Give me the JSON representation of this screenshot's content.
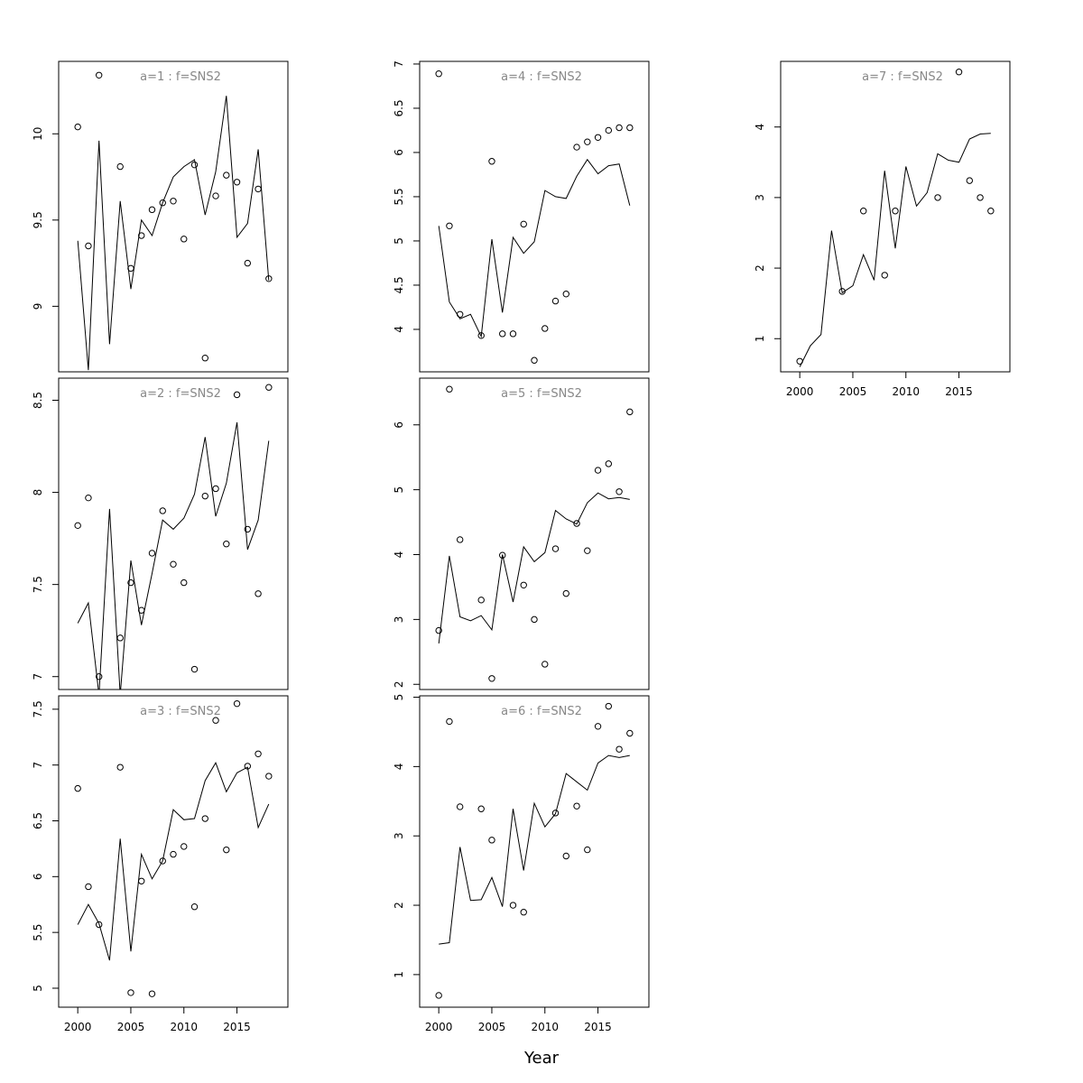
{
  "figure": {
    "xlabel": "Year"
  },
  "chart_data": [
    {
      "type": "line+scatter",
      "title": "a=1 : f=SNS2",
      "xlim": [
        1998.2,
        2019.8
      ],
      "ylim": [
        8.62,
        10.42
      ],
      "yticks": [
        9.0,
        9.5,
        10.0
      ],
      "xticks": [],
      "series": [
        {
          "name": "line",
          "x": [
            2000,
            2001,
            2002,
            2003,
            2004,
            2005,
            2006,
            2007,
            2008,
            2009,
            2010,
            2011,
            2012,
            2013,
            2014,
            2015,
            2016,
            2017,
            2018
          ],
          "values": [
            9.38,
            8.63,
            9.96,
            8.78,
            9.61,
            9.1,
            9.5,
            9.41,
            9.6,
            9.75,
            9.81,
            9.85,
            9.53,
            9.78,
            10.22,
            9.4,
            9.48,
            9.91,
            9.15
          ]
        },
        {
          "name": "points",
          "x": [
            2000,
            2001,
            2002,
            2004,
            2005,
            2006,
            2007,
            2008,
            2009,
            2010,
            2011,
            2012,
            2013,
            2014,
            2015,
            2016,
            2017,
            2018
          ],
          "values": [
            10.04,
            9.35,
            10.34,
            9.81,
            9.22,
            9.41,
            9.56,
            9.6,
            9.61,
            9.39,
            9.82,
            8.7,
            9.64,
            9.76,
            9.72,
            9.25,
            9.68,
            9.16
          ]
        }
      ]
    },
    {
      "type": "line+scatter",
      "title": "a=2 : f=SNS2",
      "xlim": [
        1998.2,
        2019.8
      ],
      "ylim": [
        6.93,
        8.62
      ],
      "yticks": [
        7.0,
        7.5,
        8.0,
        8.5
      ],
      "xticks": [],
      "series": [
        {
          "name": "line",
          "x": [
            2000,
            2001,
            2002,
            2003,
            2004,
            2005,
            2006,
            2007,
            2008,
            2009,
            2010,
            2011,
            2012,
            2013,
            2014,
            2015,
            2016,
            2017,
            2018
          ],
          "values": [
            7.29,
            7.4,
            6.9,
            7.91,
            6.9,
            7.63,
            7.28,
            7.56,
            7.85,
            7.8,
            7.86,
            7.99,
            8.3,
            7.87,
            8.05,
            8.38,
            7.69,
            7.85,
            8.28
          ]
        },
        {
          "name": "points",
          "x": [
            2000,
            2001,
            2002,
            2004,
            2005,
            2006,
            2007,
            2008,
            2009,
            2010,
            2011,
            2012,
            2013,
            2014,
            2015,
            2016,
            2017,
            2018
          ],
          "values": [
            7.82,
            7.97,
            7.0,
            7.21,
            7.51,
            7.36,
            7.67,
            7.9,
            7.61,
            7.51,
            7.04,
            7.98,
            8.02,
            7.72,
            8.53,
            7.8,
            7.45,
            8.57
          ]
        }
      ]
    },
    {
      "type": "line+scatter",
      "title": "a=3 : f=SNS2",
      "xlim": [
        1998.2,
        2019.8
      ],
      "ylim": [
        4.83,
        7.62
      ],
      "yticks": [
        5.0,
        5.5,
        6.0,
        6.5,
        7.0,
        7.5
      ],
      "xticks": [
        2000,
        2005,
        2010,
        2015
      ],
      "series": [
        {
          "name": "line",
          "x": [
            2000,
            2001,
            2002,
            2003,
            2004,
            2005,
            2006,
            2007,
            2008,
            2009,
            2010,
            2011,
            2012,
            2013,
            2014,
            2015,
            2016,
            2017,
            2018
          ],
          "values": [
            5.57,
            5.75,
            5.58,
            5.25,
            6.34,
            5.33,
            6.2,
            5.98,
            6.14,
            6.6,
            6.51,
            6.52,
            6.86,
            7.02,
            6.76,
            6.93,
            6.98,
            6.44,
            6.65
          ]
        },
        {
          "name": "points",
          "x": [
            2000,
            2001,
            2002,
            2004,
            2005,
            2006,
            2007,
            2008,
            2009,
            2010,
            2011,
            2012,
            2013,
            2014,
            2015,
            2016,
            2017,
            2018
          ],
          "values": [
            6.79,
            5.91,
            5.57,
            6.98,
            4.96,
            5.96,
            4.95,
            6.14,
            6.2,
            6.27,
            5.73,
            6.52,
            7.4,
            6.24,
            7.55,
            6.99,
            7.1,
            6.9
          ]
        }
      ]
    },
    {
      "type": "line+scatter",
      "title": "a=4 : f=SNS2",
      "xlim": [
        1998.2,
        2019.8
      ],
      "ylim": [
        3.52,
        7.03
      ],
      "yticks": [
        4.0,
        4.5,
        5.0,
        5.5,
        6.0,
        6.5,
        7.0
      ],
      "xticks": [],
      "series": [
        {
          "name": "line",
          "x": [
            2000,
            2001,
            2002,
            2003,
            2004,
            2005,
            2006,
            2007,
            2008,
            2009,
            2010,
            2011,
            2012,
            2013,
            2014,
            2015,
            2016,
            2017,
            2018
          ],
          "values": [
            5.17,
            4.31,
            4.12,
            4.17,
            3.92,
            5.02,
            4.19,
            5.04,
            4.86,
            4.99,
            5.57,
            5.5,
            5.48,
            5.73,
            5.92,
            5.76,
            5.85,
            5.87,
            5.4
          ]
        },
        {
          "name": "points",
          "x": [
            2000,
            2001,
            2002,
            2004,
            2005,
            2006,
            2007,
            2008,
            2009,
            2010,
            2011,
            2012,
            2013,
            2014,
            2015,
            2016,
            2017,
            2018
          ],
          "values": [
            6.89,
            5.17,
            4.17,
            3.93,
            5.9,
            3.95,
            3.95,
            5.19,
            3.65,
            4.01,
            4.32,
            4.4,
            6.06,
            6.12,
            6.17,
            6.25,
            6.28,
            6.28
          ]
        }
      ]
    },
    {
      "type": "line+scatter",
      "title": "a=5 : f=SNS2",
      "xlim": [
        1998.2,
        2019.8
      ],
      "ylim": [
        1.92,
        6.72
      ],
      "yticks": [
        2,
        3,
        4,
        5,
        6
      ],
      "xticks": [],
      "series": [
        {
          "name": "line",
          "x": [
            2000,
            2001,
            2002,
            2003,
            2004,
            2005,
            2006,
            2007,
            2008,
            2009,
            2010,
            2011,
            2012,
            2013,
            2014,
            2015,
            2016,
            2017,
            2018
          ],
          "values": [
            2.63,
            3.98,
            3.04,
            2.98,
            3.06,
            2.84,
            4.0,
            3.27,
            4.12,
            3.89,
            4.03,
            4.68,
            4.55,
            4.47,
            4.8,
            4.95,
            4.86,
            4.88,
            4.85
          ]
        },
        {
          "name": "points",
          "x": [
            2000,
            2001,
            2002,
            2004,
            2005,
            2006,
            2008,
            2009,
            2010,
            2011,
            2012,
            2013,
            2014,
            2015,
            2016,
            2017,
            2018
          ],
          "values": [
            2.83,
            6.55,
            4.23,
            3.3,
            2.09,
            3.99,
            3.53,
            3.0,
            2.31,
            4.09,
            3.4,
            4.48,
            4.06,
            5.3,
            5.4,
            4.97,
            6.2
          ]
        }
      ]
    },
    {
      "type": "line+scatter",
      "title": "a=6 : f=SNS2",
      "xlim": [
        1998.2,
        2019.8
      ],
      "ylim": [
        0.53,
        5.02
      ],
      "yticks": [
        1,
        2,
        3,
        4,
        5
      ],
      "xticks": [
        2000,
        2005,
        2010,
        2015
      ],
      "series": [
        {
          "name": "line",
          "x": [
            2000,
            2001,
            2002,
            2003,
            2004,
            2005,
            2006,
            2007,
            2008,
            2009,
            2010,
            2011,
            2012,
            2013,
            2014,
            2015,
            2016,
            2017,
            2018
          ],
          "values": [
            1.44,
            1.46,
            2.84,
            2.07,
            2.08,
            2.4,
            1.98,
            3.39,
            2.5,
            3.47,
            3.13,
            3.32,
            3.9,
            3.78,
            3.66,
            4.05,
            4.16,
            4.13,
            4.16
          ]
        },
        {
          "name": "points",
          "x": [
            2000,
            2001,
            2002,
            2004,
            2005,
            2007,
            2008,
            2011,
            2012,
            2013,
            2014,
            2015,
            2016,
            2017,
            2018
          ],
          "values": [
            0.7,
            4.65,
            3.42,
            3.39,
            2.94,
            2.0,
            1.9,
            3.33,
            2.71,
            3.43,
            2.8,
            4.58,
            4.87,
            4.25,
            4.48
          ]
        }
      ]
    },
    {
      "type": "line+scatter",
      "title": "a=7 : f=SNS2",
      "xlim": [
        1998.2,
        2019.8
      ],
      "ylim": [
        0.53,
        4.93
      ],
      "yticks": [
        1,
        2,
        3,
        4
      ],
      "xticks": [
        2000,
        2005,
        2010,
        2015
      ],
      "series": [
        {
          "name": "line",
          "x": [
            2000,
            2001,
            2002,
            2003,
            2004,
            2005,
            2006,
            2007,
            2008,
            2009,
            2010,
            2011,
            2012,
            2013,
            2014,
            2015,
            2016,
            2017,
            2018
          ],
          "values": [
            0.6,
            0.9,
            1.06,
            2.53,
            1.65,
            1.75,
            2.19,
            1.83,
            3.38,
            2.28,
            3.44,
            2.88,
            3.07,
            3.62,
            3.53,
            3.5,
            3.83,
            3.9,
            3.91
          ]
        },
        {
          "name": "points",
          "x": [
            2000,
            2004,
            2006,
            2008,
            2009,
            2013,
            2015,
            2016,
            2017,
            2018
          ],
          "values": [
            0.68,
            1.67,
            2.81,
            1.9,
            2.81,
            3.0,
            4.78,
            3.24,
            3.0,
            2.81
          ]
        }
      ]
    }
  ]
}
